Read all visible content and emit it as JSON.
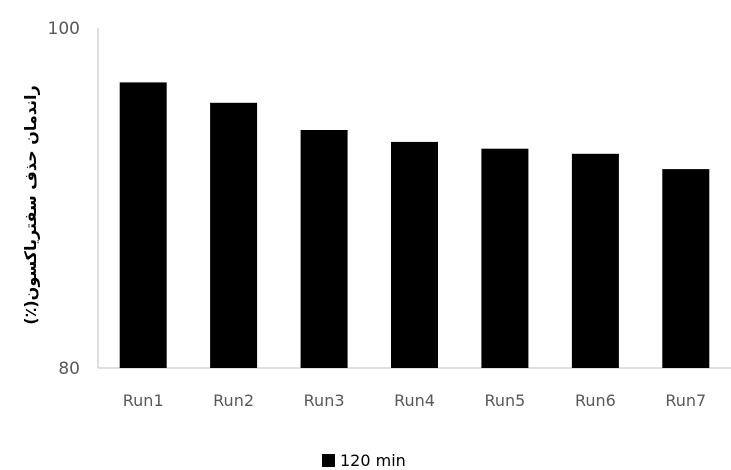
{
  "chart_data": {
    "type": "bar",
    "categories": [
      "Run1",
      "Run2",
      "Run3",
      "Run4",
      "Run5",
      "Run6",
      "Run7"
    ],
    "series": [
      {
        "name": "120 min",
        "values": [
          96.8,
          95.6,
          94.0,
          93.3,
          92.9,
          92.6,
          91.7
        ],
        "color": "#000000"
      }
    ],
    "title": "",
    "xlabel": "",
    "ylabel": "راندمان حذف سفتریاکسون(٪)",
    "ylim": [
      80,
      100
    ],
    "yticks": [
      "80",
      "100"
    ],
    "grid": false,
    "legend_position": "bottom"
  }
}
